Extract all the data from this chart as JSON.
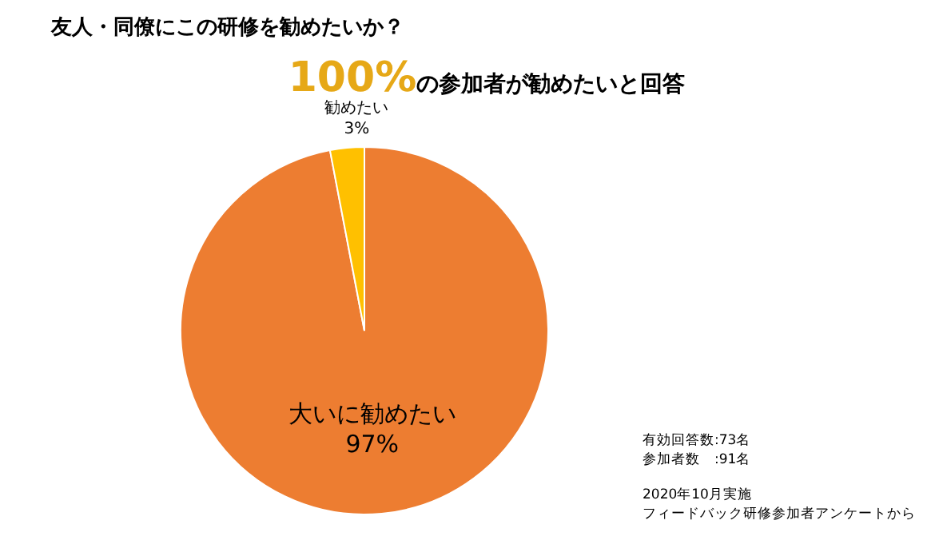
{
  "chart_data": {
    "type": "pie",
    "title": "友人・同僚にこの研修を勧めたいか？",
    "subtitle": "100%の参加者が勧めたいと回答",
    "categories": [
      "大いに勧めたい",
      "勧めたい"
    ],
    "values": [
      97,
      3
    ],
    "colors": [
      "#ed7d31",
      "#ffc000"
    ],
    "value_labels": [
      "97%",
      "3%"
    ],
    "legend": false,
    "annotations": [
      "有効回答数:73名",
      "参加者数　:91名",
      "2020年10月実施",
      "フィードバック研修参加者アンケートから"
    ]
  }
}
